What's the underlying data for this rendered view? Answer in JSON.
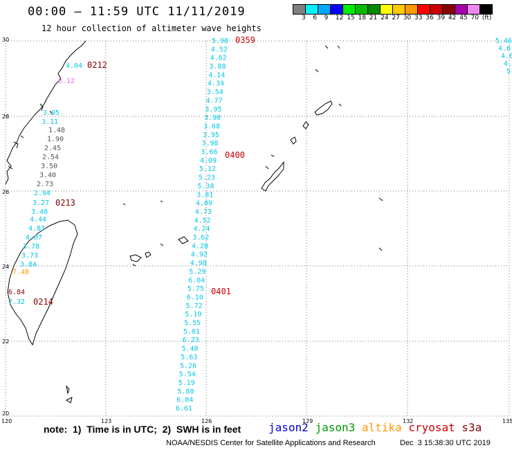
{
  "title": "00:00 – 11:59 UTC 11/11/2019",
  "subtitle": "12 hour collection of altimeter wave heights",
  "colorbar": {
    "labels": [
      "3",
      "6",
      "9",
      "12",
      "15",
      "18",
      "21",
      "24",
      "27",
      "30",
      "33",
      "36",
      "39",
      "42",
      "45",
      "70",
      "(ft)"
    ],
    "colors": [
      "#7f7f7f",
      "#00f5f5",
      "#00aaff",
      "#0000ff",
      "#00ee00",
      "#00bb00",
      "#008800",
      "#ffff00",
      "#ffcc00",
      "#ff9900",
      "#ff0000",
      "#cc0000",
      "#880000",
      "#aa00aa",
      "#ee88ee",
      "#000000"
    ]
  },
  "axes": {
    "lon_ticks": [
      "120",
      "123",
      "126",
      "129",
      "132",
      "135"
    ],
    "lat_ticks": [
      "20",
      "22",
      "24",
      "26",
      "28",
      "30"
    ]
  },
  "times": [
    "0359",
    "0212",
    "0400",
    "0213",
    "0401",
    "0214"
  ],
  "tracks": {
    "jason3_ne_fragment": [
      "5.46",
      "4.6",
      "4.6",
      "4.6",
      "5"
    ],
    "cryosat_coast": [
      "6.12"
    ],
    "s3a_top": [
      "4.04"
    ],
    "west_track": [
      "3.95",
      "3.11",
      "1.48",
      "1.90",
      "2.45",
      "2.54",
      "3.50",
      "3.40",
      "2.73",
      "2.94",
      "3.27",
      "3.40",
      "4.44",
      "4.83",
      "4.07",
      "3.78",
      "3.73",
      "3.84",
      "7.48",
      "6.84",
      "7.32"
    ],
    "central_track": [
      "5.98",
      "4.52",
      "4.62",
      "3.88",
      "4.14",
      "4.34",
      "3.54",
      "4.77",
      "3.95",
      "3.90",
      "3.68",
      "3.95",
      "3.98",
      "3.66",
      "4.09",
      "5.12",
      "5.23",
      "5.38",
      "3.81",
      "4.09",
      "4.73",
      "4.52",
      "4.24",
      "3.62",
      "4.28",
      "4.92",
      "4.98",
      "5.29",
      "6.04",
      "5.75",
      "6.10",
      "5.72",
      "5.19",
      "5.55",
      "5.01",
      "6.23",
      "5.48",
      "5.63",
      "5.26",
      "5.54",
      "5.19",
      "5.80",
      "6.04",
      "6.61"
    ]
  },
  "note": "note:  1)  Time is in UTC;  2)  SWH is in feet",
  "satellites": {
    "jason2": "jason2",
    "jason3": "jason3",
    "altika": "altika",
    "cryosat": "cryosat",
    "s3a": "s3a"
  },
  "satellite_colors": {
    "jason2": "#0000cc",
    "jason3": "#009900",
    "altika": "#ff9900",
    "cryosat": "#cc0000",
    "s3a": "#880000",
    "track": "#00c8e6",
    "gray": "#7f7f7f",
    "time_label": "#cc0000"
  },
  "credit": "NOAA/NESDIS Center for Satellite Applications and Research",
  "credit_date": "Dec  3 15:38:30 UTC 2019"
}
